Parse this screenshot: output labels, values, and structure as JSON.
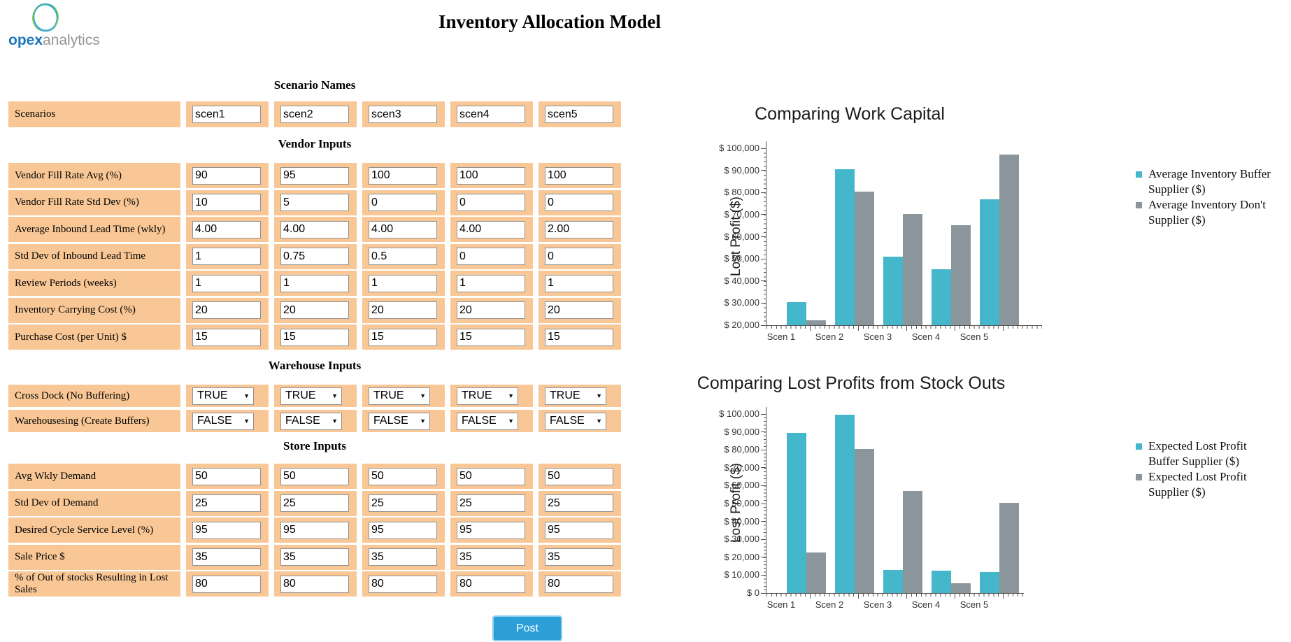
{
  "logo": {
    "brand_bold": "opex",
    "brand_light": "analytics"
  },
  "header": {
    "title": "Inventory Allocation Model"
  },
  "form": {
    "post_label": "Post",
    "sections": [
      {
        "heading": "Scenario Names",
        "rows": [
          {
            "label": "Scenarios",
            "type": "text",
            "values": [
              "scen1",
              "scen2",
              "scen3",
              "scen4",
              "scen5"
            ]
          }
        ]
      },
      {
        "heading": "Vendor Inputs",
        "rows": [
          {
            "label": "Vendor Fill Rate Avg (%)",
            "type": "text",
            "values": [
              "90",
              "95",
              "100",
              "100",
              "100"
            ]
          },
          {
            "label": "Vendor Fill Rate Std Dev (%)",
            "type": "text",
            "values": [
              "10",
              "5",
              "0",
              "0",
              "0"
            ]
          },
          {
            "label": "Average Inbound Lead Time (wkly)",
            "type": "text",
            "values": [
              "4.00",
              "4.00",
              "4.00",
              "4.00",
              "2.00"
            ]
          },
          {
            "label": "Std Dev of Inbound Lead Time",
            "type": "text",
            "values": [
              "1",
              "0.75",
              "0.5",
              "0",
              "0"
            ]
          },
          {
            "label": "Review Periods (weeks)",
            "type": "text",
            "values": [
              "1",
              "1",
              "1",
              "1",
              "1"
            ]
          },
          {
            "label": "Inventory Carrying Cost (%)",
            "type": "text",
            "values": [
              "20",
              "20",
              "20",
              "20",
              "20"
            ]
          },
          {
            "label": "Purchase Cost (per Unit) $",
            "type": "text",
            "values": [
              "15",
              "15",
              "15",
              "15",
              "15"
            ]
          }
        ]
      },
      {
        "heading": "Warehouse Inputs",
        "rows": [
          {
            "label": "Cross Dock (No Buffering)",
            "type": "select",
            "values": [
              "TRUE",
              "TRUE",
              "TRUE",
              "TRUE",
              "TRUE"
            ]
          },
          {
            "label": "Warehousesing (Create Buffers)",
            "type": "select",
            "values": [
              "FALSE",
              "FALSE",
              "FALSE",
              "FALSE",
              "FALSE"
            ]
          }
        ]
      },
      {
        "heading": "Store Inputs",
        "rows": [
          {
            "label": "Avg Wkly Demand",
            "type": "text",
            "values": [
              "50",
              "50",
              "50",
              "50",
              "50"
            ]
          },
          {
            "label": "Std Dev of Demand",
            "type": "text",
            "values": [
              "25",
              "25",
              "25",
              "25",
              "25"
            ]
          },
          {
            "label": "Desired Cycle Service Level (%)",
            "type": "text",
            "values": [
              "95",
              "95",
              "95",
              "95",
              "95"
            ]
          },
          {
            "label": "Sale Price $",
            "type": "text",
            "values": [
              "35",
              "35",
              "35",
              "35",
              "35"
            ]
          },
          {
            "label": "% of Out of stocks Resulting in Lost Sales",
            "type": "text",
            "values": [
              "80",
              "80",
              "80",
              "80",
              "80"
            ]
          }
        ]
      }
    ]
  },
  "colors": {
    "row_bg": "#F8C795",
    "teal": "#45B7CB",
    "gray": "#8B969C",
    "post_button": "#2C9FD9",
    "logo_blue": "#1C76BC",
    "logo_gray": "#939598"
  },
  "chart_data": [
    {
      "type": "bar",
      "title": "Comparing Work Capital",
      "xlabel": "",
      "ylabel": "Lost Profit ($)",
      "categories": [
        "Scen 1",
        "Scen 2",
        "Scen 3",
        "Scen 4",
        "Scen 5"
      ],
      "series": [
        {
          "name": "Average Inventory Buffer Supplier ($)",
          "color": "#45B7CB",
          "values": [
            30500,
            90500,
            51000,
            45300,
            77000
          ]
        },
        {
          "name": "Average Inventory Don't Supplier ($)",
          "color": "#8B969C",
          "values": [
            22300,
            80500,
            70300,
            65200,
            97000
          ]
        }
      ],
      "ylim": [
        20000,
        100000
      ],
      "ytick_step": 10000,
      "ytick_prefix": "$ ",
      "grid": false,
      "legend_position": "right"
    },
    {
      "type": "bar",
      "title": "Comparing Lost Profits from Stock Outs",
      "xlabel": "",
      "ylabel": "Lost Profit ($)",
      "categories": [
        "Scen 1",
        "Scen 2",
        "Scen 3",
        "Scen 4",
        "Scen 5"
      ],
      "series": [
        {
          "name": "Expected Lost Profit Buffer Supplier ($)",
          "color": "#45B7CB",
          "values": [
            89500,
            99500,
            13000,
            12500,
            11800
          ]
        },
        {
          "name": "Expected Lost Profit Supplier ($)",
          "color": "#8B969C",
          "values": [
            22500,
            80500,
            57000,
            5500,
            50500
          ]
        }
      ],
      "ylim": [
        0,
        100000
      ],
      "ytick_step": 10000,
      "ytick_prefix": "$ ",
      "grid": false,
      "legend_position": "right"
    }
  ]
}
